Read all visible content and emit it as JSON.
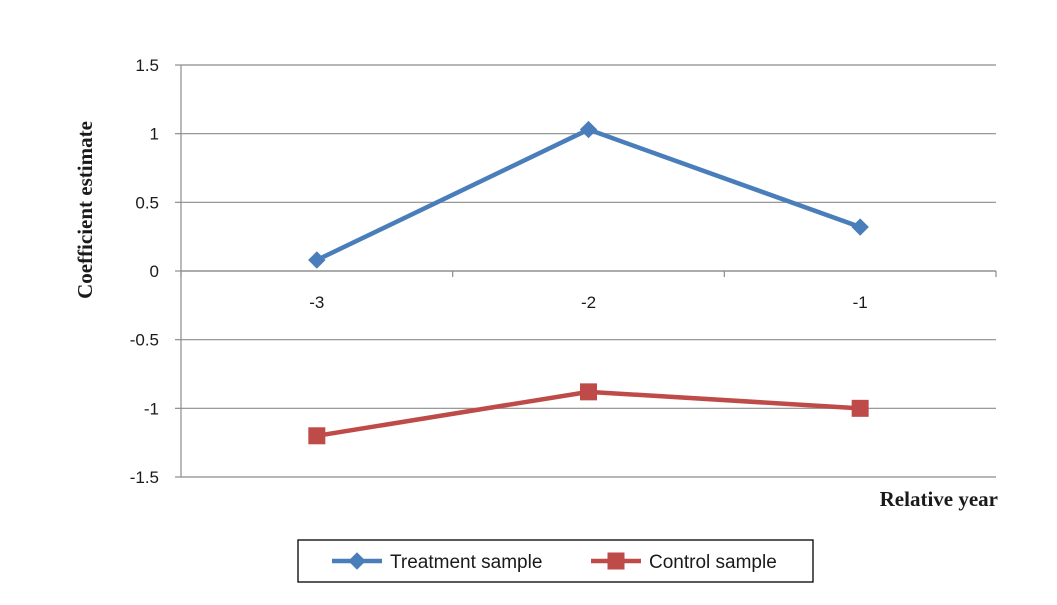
{
  "chart_data": {
    "type": "line",
    "title": "",
    "xlabel": "Relative year",
    "ylabel": "Coefficient estimate",
    "categories": [
      "-3",
      "-2",
      "-1"
    ],
    "ylim": [
      -1.5,
      1.5
    ],
    "yticks": [
      "1.5",
      "1",
      "0.5",
      "0",
      "-0.5",
      "-1",
      "-1.5"
    ],
    "grid": true,
    "legend_position": "bottom",
    "series": [
      {
        "name": "Treatment sample",
        "values": [
          0.08,
          1.03,
          0.32
        ],
        "color": "#4A7EBB",
        "marker": "diamond"
      },
      {
        "name": "Control sample",
        "values": [
          -1.2,
          -0.88,
          -1.0
        ],
        "color": "#BE4B48",
        "marker": "square"
      }
    ]
  }
}
